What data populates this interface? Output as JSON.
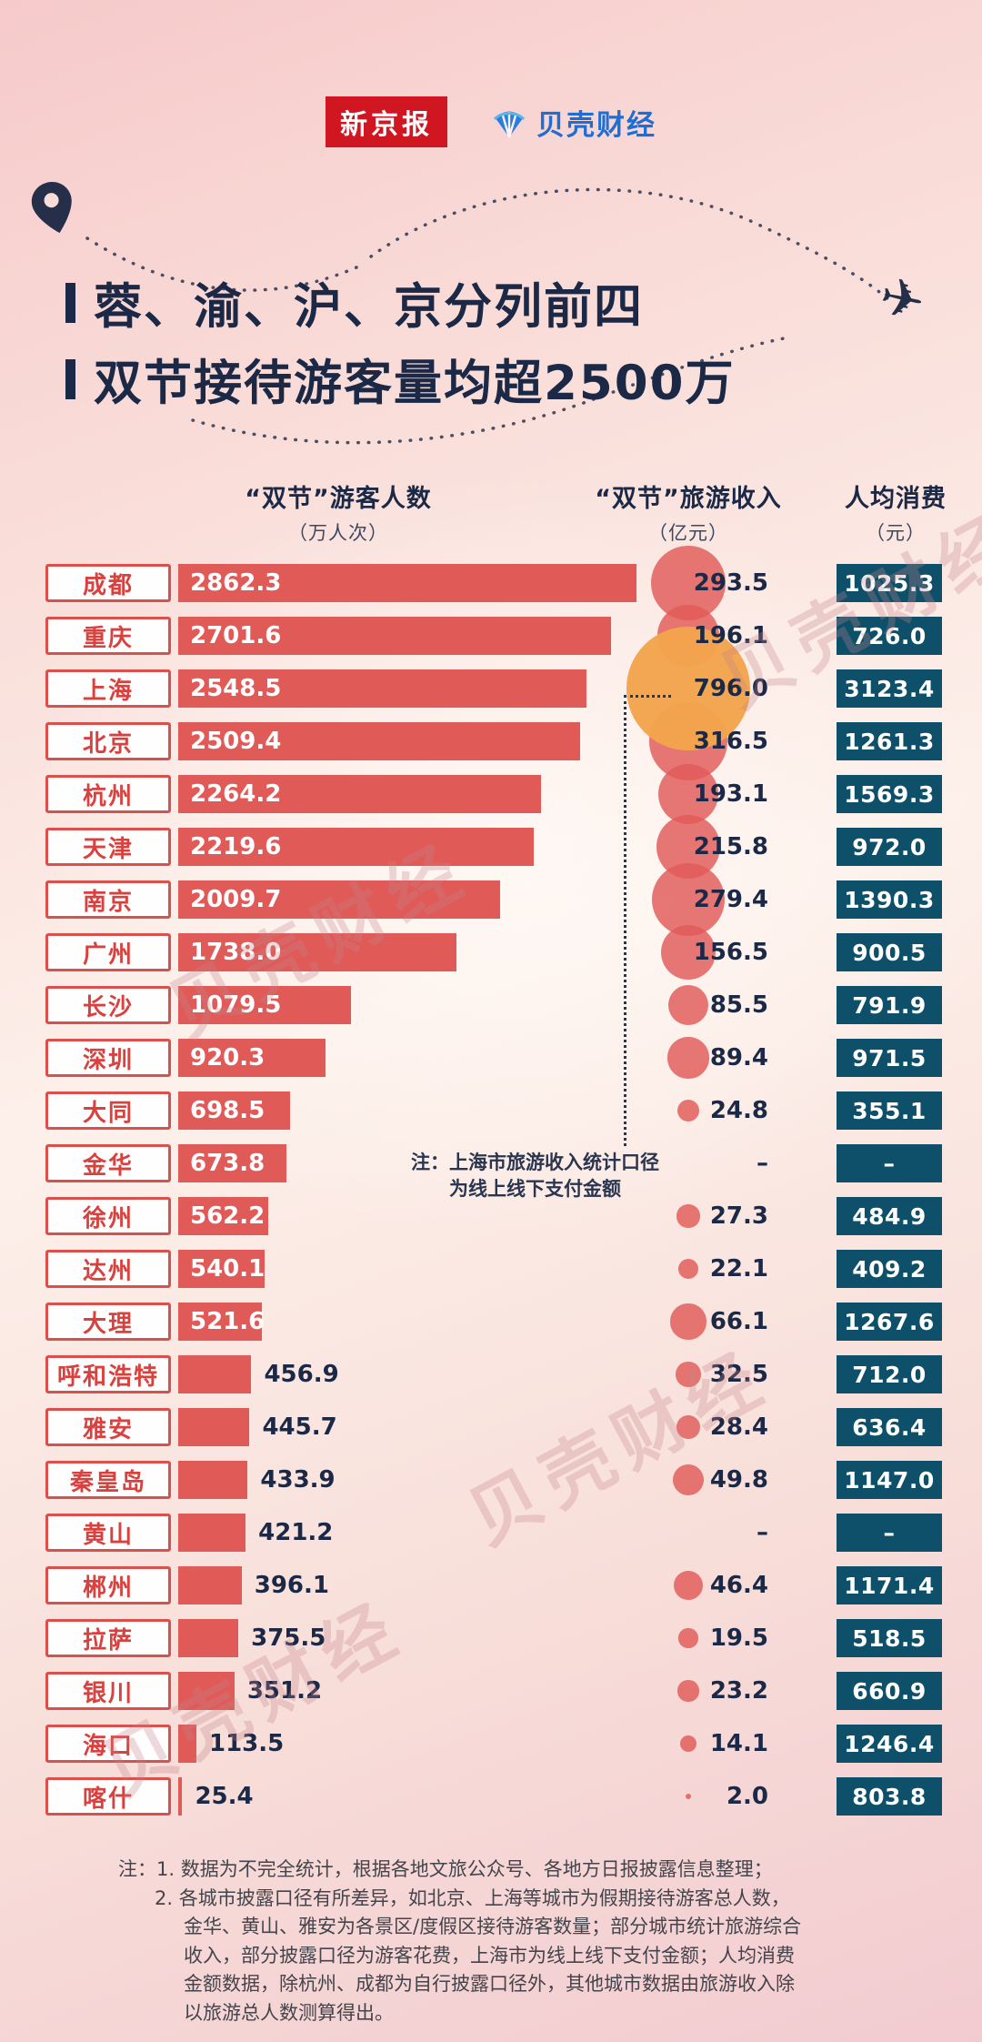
{
  "header": {
    "logo_xjb": "新京报",
    "logo_bk": "贝壳财经"
  },
  "title": {
    "line1": "蓉、渝、沪、京分列前四",
    "line2": "双节接待游客量均超2500万"
  },
  "columns": {
    "visitors_label": "“双节”游客人数",
    "visitors_unit": "（万人次）",
    "revenue_label": "“双节”旅游收入",
    "revenue_unit": "（亿元）",
    "percap_label": "人均消费",
    "percap_unit": "（元）"
  },
  "annotation": {
    "line1": "注：上海市旅游收入统计口径",
    "line2": "为线上线下支付金额"
  },
  "watermark_text": "贝壳财经",
  "chart_data": {
    "type": "bar",
    "title": [
      "蓉、渝、沪、京分列前四",
      "双节接待游客量均超2500万"
    ],
    "columns": [
      "“双节”游客人数（万人次）",
      "“双节”旅游收入（亿元）",
      "人均消费（元）"
    ],
    "highlight_city": "上海",
    "no_data_symbol": "–",
    "rows": [
      {
        "city": "成都",
        "visitors": 2862.3,
        "revenue": 293.5,
        "per_capita": 1025.3
      },
      {
        "city": "重庆",
        "visitors": 2701.6,
        "revenue": 196.1,
        "per_capita": 726.0
      },
      {
        "city": "上海",
        "visitors": 2548.5,
        "revenue": 796.0,
        "per_capita": 3123.4
      },
      {
        "city": "北京",
        "visitors": 2509.4,
        "revenue": 316.5,
        "per_capita": 1261.3
      },
      {
        "city": "杭州",
        "visitors": 2264.2,
        "revenue": 193.1,
        "per_capita": 1569.3
      },
      {
        "city": "天津",
        "visitors": 2219.6,
        "revenue": 215.8,
        "per_capita": 972.0
      },
      {
        "city": "南京",
        "visitors": 2009.7,
        "revenue": 279.4,
        "per_capita": 1390.3
      },
      {
        "city": "广州",
        "visitors": 1738.0,
        "revenue": 156.5,
        "per_capita": 900.5
      },
      {
        "city": "长沙",
        "visitors": 1079.5,
        "revenue": 85.5,
        "per_capita": 791.9
      },
      {
        "city": "深圳",
        "visitors": 920.3,
        "revenue": 89.4,
        "per_capita": 971.5
      },
      {
        "city": "大同",
        "visitors": 698.5,
        "revenue": 24.8,
        "per_capita": 355.1
      },
      {
        "city": "金华",
        "visitors": 673.8,
        "revenue": null,
        "per_capita": null
      },
      {
        "city": "徐州",
        "visitors": 562.2,
        "revenue": 27.3,
        "per_capita": 484.9
      },
      {
        "city": "达州",
        "visitors": 540.1,
        "revenue": 22.1,
        "per_capita": 409.2
      },
      {
        "city": "大理",
        "visitors": 521.6,
        "revenue": 66.1,
        "per_capita": 1267.6
      },
      {
        "city": "呼和浩特",
        "visitors": 456.9,
        "revenue": 32.5,
        "per_capita": 712.0
      },
      {
        "city": "雅安",
        "visitors": 445.7,
        "revenue": 28.4,
        "per_capita": 636.4
      },
      {
        "city": "秦皇岛",
        "visitors": 433.9,
        "revenue": 49.8,
        "per_capita": 1147.0
      },
      {
        "city": "黄山",
        "visitors": 421.2,
        "revenue": null,
        "per_capita": null
      },
      {
        "city": "郴州",
        "visitors": 396.1,
        "revenue": 46.4,
        "per_capita": 1171.4
      },
      {
        "city": "拉萨",
        "visitors": 375.5,
        "revenue": 19.5,
        "per_capita": 518.5
      },
      {
        "city": "银川",
        "visitors": 351.2,
        "revenue": 23.2,
        "per_capita": 660.9
      },
      {
        "city": "海口",
        "visitors": 113.5,
        "revenue": 14.1,
        "per_capita": 1246.4
      },
      {
        "city": "喀什",
        "visitors": 25.4,
        "revenue": 2.0,
        "per_capita": 803.8
      }
    ],
    "colors": {
      "bar": "#e05a58",
      "bubble_highlight": "#f3a44c",
      "percap_bg": "#0e5069",
      "city_red": "#d8413e",
      "dark_navy": "#1b2947"
    }
  },
  "footnotes": [
    {
      "indent": 0,
      "text": "注：1. 数据为不完全统计，根据各地文旅公众号、各地方日报披露信息整理；"
    },
    {
      "indent": 40,
      "text": "2. 各城市披露口径有所差异，如北京、上海等城市为假期接待游客总人数，"
    },
    {
      "indent": 72,
      "text": "金华、黄山、雅安为各景区/度假区接待游客数量；部分城市统计旅游综合"
    },
    {
      "indent": 72,
      "text": "收入，部分披露口径为游客花费，上海市为线上线下支付金额；人均消费"
    },
    {
      "indent": 72,
      "text": "金额数据，除杭州、成都为自行披露口径外，其他城市数据由旅游收入除"
    },
    {
      "indent": 72,
      "text": "以旅游总人数测算得出。"
    }
  ]
}
